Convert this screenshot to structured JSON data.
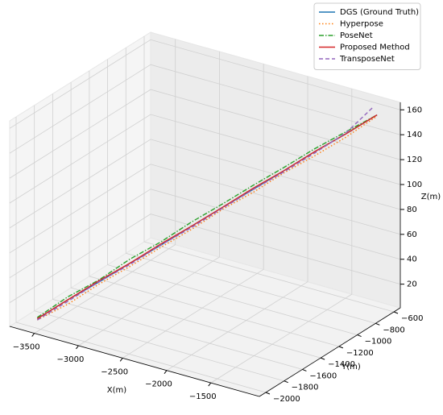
{
  "chart_data": {
    "type": "line3d",
    "xlabel": "X(m)",
    "ylabel": "Y(m)",
    "zlabel": "Z(m)",
    "xlim": [
      -3780,
      -950
    ],
    "ylim": [
      -2070,
      -530
    ],
    "zlim": [
      1,
      166
    ],
    "xticks": [
      {
        "value": -3500,
        "label": "−3500"
      },
      {
        "value": -3000,
        "label": "−3000"
      },
      {
        "value": -2500,
        "label": "−2500"
      },
      {
        "value": -2000,
        "label": "−2000"
      },
      {
        "value": -1500,
        "label": "−1500"
      }
    ],
    "yticks": [
      {
        "value": -2000,
        "label": "−2000"
      },
      {
        "value": -1800,
        "label": "−1800"
      },
      {
        "value": -1600,
        "label": "−1600"
      },
      {
        "value": -1400,
        "label": "−1400"
      },
      {
        "value": -1200,
        "label": "−1200"
      },
      {
        "value": -1000,
        "label": "−1000"
      },
      {
        "value": -800,
        "label": "−800"
      },
      {
        "value": -600,
        "label": "−600"
      }
    ],
    "zticks": [
      20,
      40,
      60,
      80,
      100,
      120,
      140,
      160
    ],
    "grid": true,
    "legend": "upper right",
    "series": [
      {
        "name": "DGS (Ground Truth)",
        "color": "#1f77b4",
        "linestyle": "solid",
        "x": [
          -3550,
          -3330,
          -3105,
          -2880,
          -2660,
          -2440,
          -2215,
          -1995,
          -1770,
          -1550,
          -1325,
          -1100
        ],
        "y": [
          -1990,
          -1868,
          -1745,
          -1622,
          -1500,
          -1377,
          -1254,
          -1132,
          -1009,
          -886,
          -763,
          -640
        ],
        "z": [
          8,
          22,
          35,
          49,
          62,
          76,
          90,
          103,
          117,
          131,
          144,
          158
        ]
      },
      {
        "name": "Hyperpose",
        "color": "#ff7f0e",
        "linestyle": "dotted",
        "x": [
          -3550,
          -3320,
          -3110,
          -2870,
          -2665,
          -2430,
          -2220,
          -1990,
          -1775,
          -1545,
          -1330,
          -1100
        ],
        "y": [
          -1990,
          -1870,
          -1740,
          -1625,
          -1495,
          -1380,
          -1250,
          -1135,
          -1005,
          -890,
          -760,
          -640
        ],
        "z": [
          7,
          19,
          33,
          47,
          60,
          74,
          88,
          101,
          115,
          128,
          141,
          157
        ]
      },
      {
        "name": "PoseNet",
        "color": "#2ca02c",
        "linestyle": "dashdot",
        "x": [
          -3550,
          -3335,
          -3100,
          -2885,
          -2655,
          -2445,
          -2210,
          -2000,
          -1765,
          -1555,
          -1320,
          -1100
        ],
        "y": [
          -1990,
          -1865,
          -1748,
          -1620,
          -1503,
          -1374,
          -1257,
          -1129,
          -1012,
          -883,
          -766,
          -640
        ],
        "z": [
          9,
          24,
          37,
          52,
          65,
          79,
          93,
          106,
          120,
          133,
          146,
          158
        ]
      },
      {
        "name": "Proposed Method",
        "color": "#d62728",
        "linestyle": "solid",
        "x": [
          -3550,
          -3330,
          -3105,
          -2880,
          -2660,
          -2440,
          -2215,
          -1995,
          -1770,
          -1550,
          -1325,
          -1100
        ],
        "y": [
          -1990,
          -1868,
          -1745,
          -1622,
          -1500,
          -1377,
          -1254,
          -1132,
          -1009,
          -886,
          -763,
          -640
        ],
        "z": [
          8,
          22,
          36,
          49,
          63,
          76,
          90,
          104,
          117,
          131,
          144,
          158
        ]
      },
      {
        "name": "TransposeNet",
        "color": "#9467bd",
        "linestyle": "dashed",
        "x": [
          -3550,
          -3325,
          -3108,
          -2878,
          -2662,
          -2438,
          -2218,
          -1993,
          -1772,
          -1548,
          -1322,
          -1120
        ],
        "y": [
          -1990,
          -1866,
          -1747,
          -1621,
          -1502,
          -1376,
          -1255,
          -1131,
          -1010,
          -885,
          -762,
          -660
        ],
        "z": [
          7,
          21,
          35,
          48,
          62,
          75,
          89,
          103,
          116,
          130,
          145,
          165
        ]
      }
    ]
  }
}
